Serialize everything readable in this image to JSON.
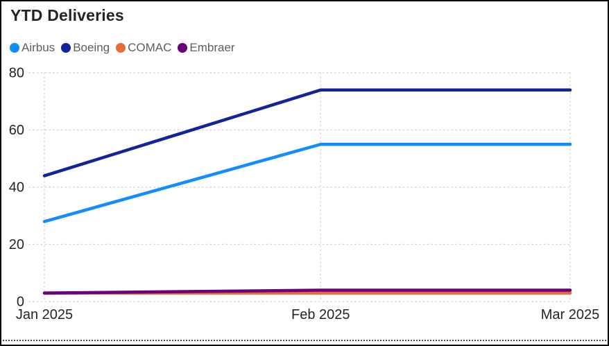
{
  "title": "YTD Deliveries",
  "chart_data": {
    "type": "line",
    "title": "YTD Deliveries",
    "x": [
      "Jan 2025",
      "Feb 2025",
      "Mar 2025"
    ],
    "x_day_offsets": [
      0,
      31,
      59
    ],
    "xlabel": "",
    "ylabel": "",
    "ylim": [
      0,
      80
    ],
    "y_ticks": [
      0,
      20,
      40,
      60,
      80
    ],
    "grid": "dotted",
    "legend_position": "top-left",
    "series": [
      {
        "name": "Airbus",
        "color": "#118DFF",
        "values": [
          28,
          55,
          55
        ]
      },
      {
        "name": "Boeing",
        "color": "#12239E",
        "values": [
          44,
          74,
          74
        ]
      },
      {
        "name": "COMAC",
        "color": "#E66C37",
        "values": [
          3,
          3,
          3
        ]
      },
      {
        "name": "Embraer",
        "color": "#6B007B",
        "values": [
          3,
          4,
          4
        ]
      }
    ]
  },
  "colors": {
    "background": "#FFFFFF",
    "border": "#000000",
    "title_text": "#252423",
    "legend_text": "#605E5C",
    "axis_text": "#252423",
    "gridline": "#D4D4D4",
    "bottom_dotted_line": "#454545"
  }
}
